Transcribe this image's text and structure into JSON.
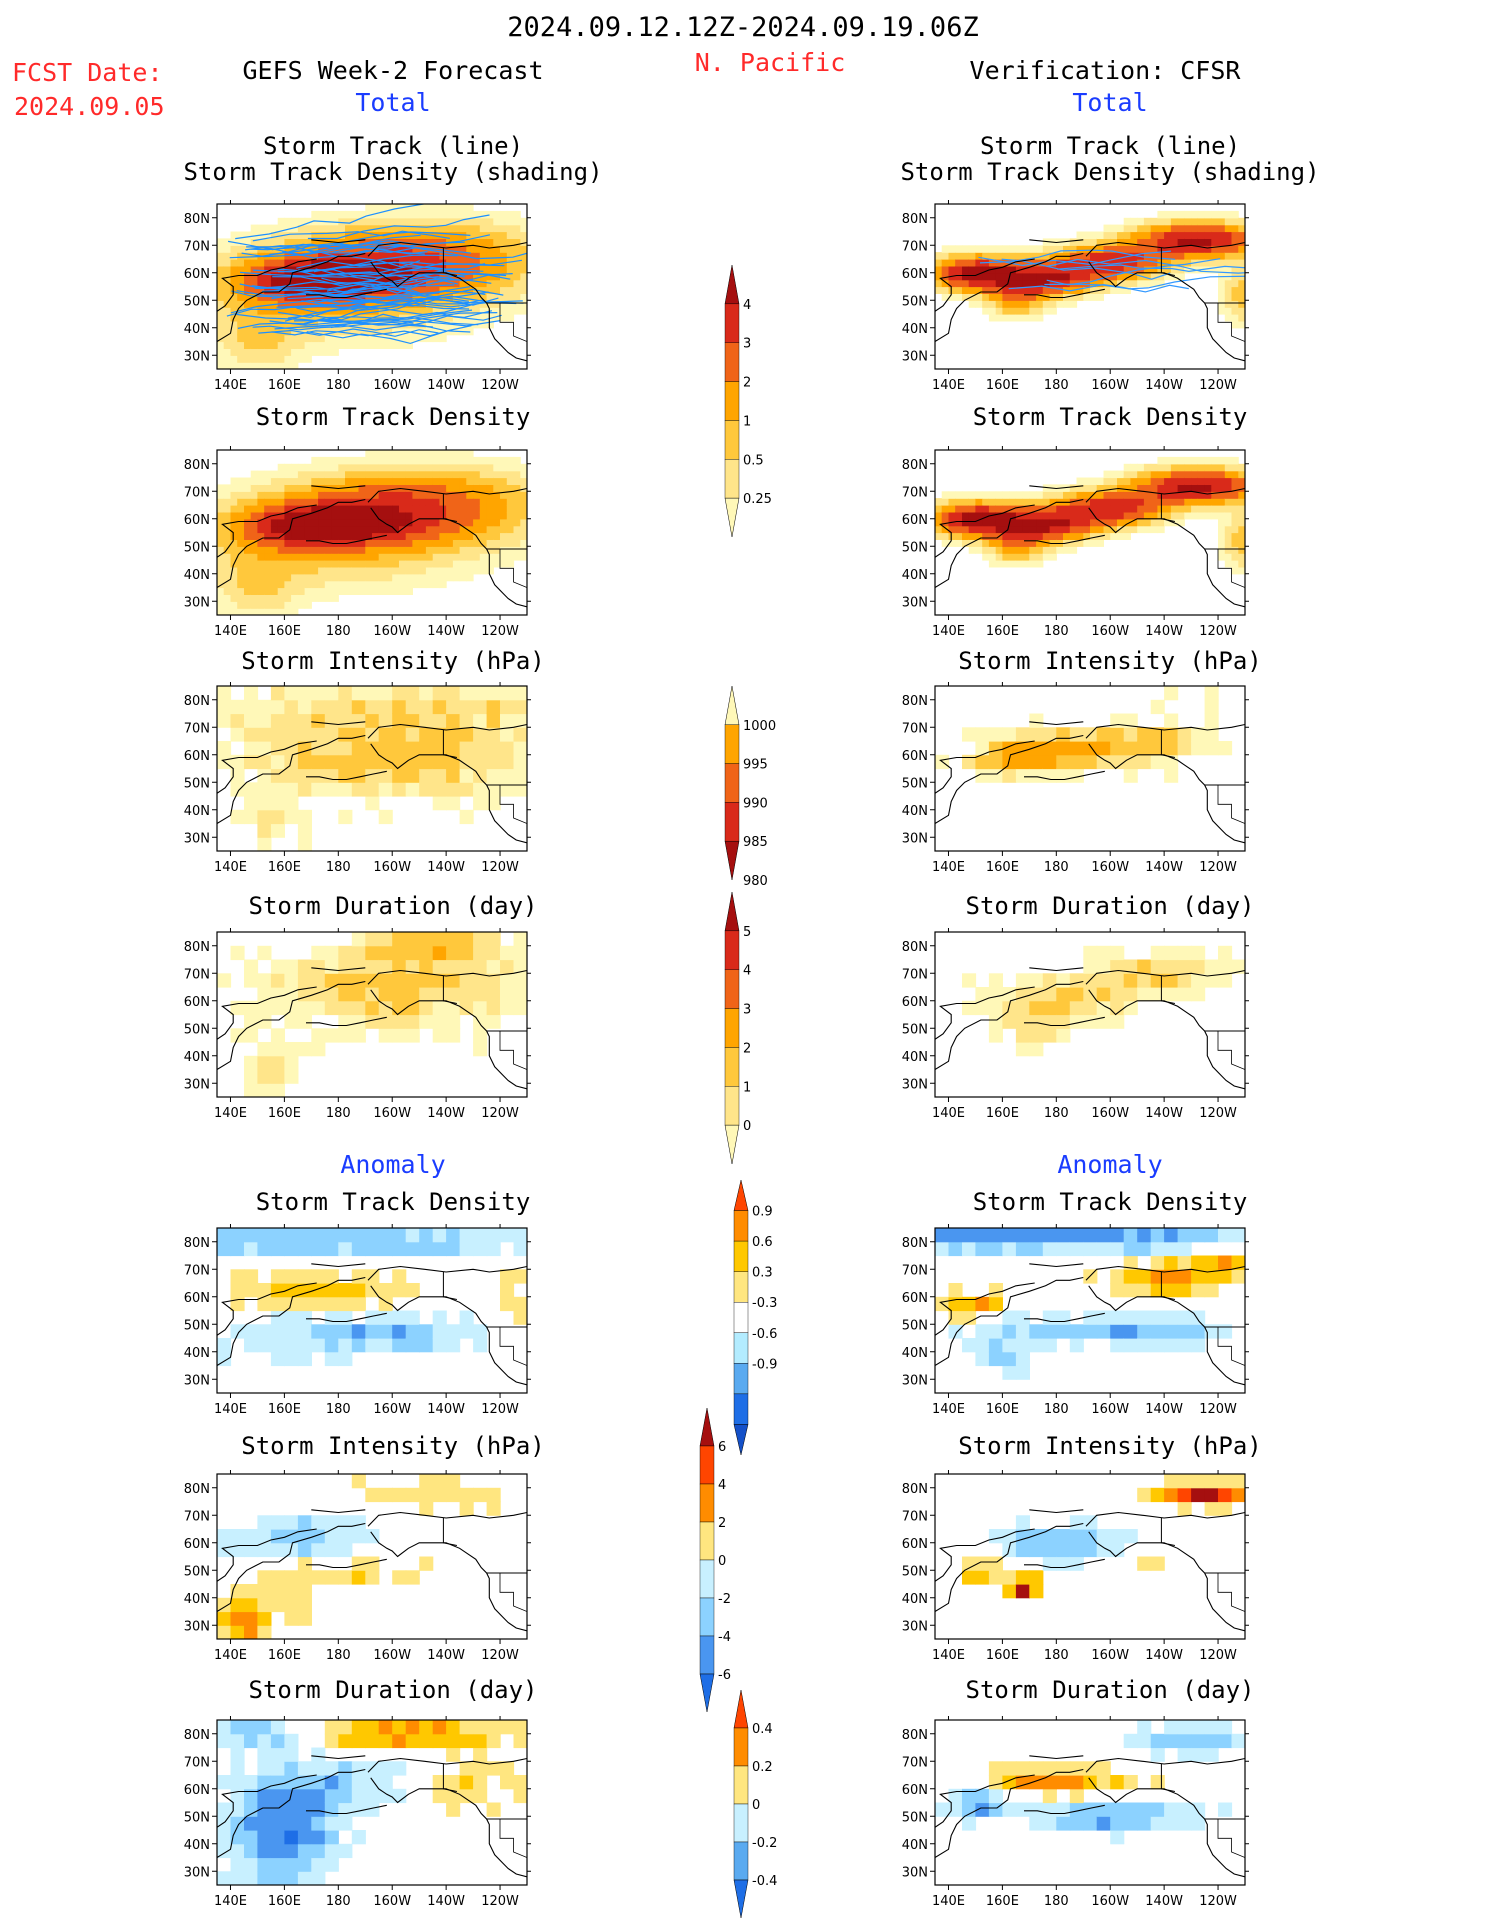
{
  "header": {
    "period": "2024.09.12.12Z-2024.09.19.06Z",
    "region": "N. Pacific",
    "fcst_label": "FCST Date:",
    "fcst_date": "2024.09.05",
    "left_title": "GEFS Week-2 Forecast",
    "right_title": "Verification: CFSR",
    "total_label": "Total",
    "anomaly_label": "Anomaly"
  },
  "axes": {
    "lat_ticks": [
      "80N",
      "70N",
      "60N",
      "50N",
      "40N",
      "30N"
    ],
    "lon_ticks": [
      "140E",
      "160E",
      "180",
      "160W",
      "140W",
      "120W"
    ]
  },
  "panels": {
    "track_line": [
      "Storm Track (line)",
      "Storm Track Density (shading)"
    ],
    "track_density": "Storm Track Density",
    "intensity": "Storm Intensity (hPa)",
    "duration": "Storm Duration (day)"
  },
  "colorbars": {
    "density_total": {
      "labels": [
        "4",
        "3",
        "2",
        "1",
        "0.5",
        "0.25"
      ],
      "colors": [
        "#a50f0f",
        "#d92a1a",
        "#f06418",
        "#ffa500",
        "#ffc83c",
        "#ffe58a",
        "#fff8b8"
      ]
    },
    "intensity_total": {
      "labels": [
        "1000",
        "995",
        "990",
        "985",
        "980"
      ],
      "colors": [
        "#fff8b8",
        "#ffa500",
        "#f06418",
        "#d92a1a",
        "#a50f0f"
      ]
    },
    "duration_total": {
      "labels": [
        "5",
        "4",
        "3",
        "2",
        "1",
        "0"
      ],
      "colors": [
        "#a50f0f",
        "#d92a1a",
        "#f06418",
        "#ffa500",
        "#ffc83c",
        "#ffe58a",
        "#fff8b8"
      ]
    },
    "density_anom": {
      "labels": [
        "0.9",
        "0.6",
        "0.3",
        "-0.3",
        "-0.6",
        "-0.9"
      ],
      "colors": [
        "#ff4500",
        "#ff8c00",
        "#ffc800",
        "#ffe680",
        "#ffffff",
        "#b3ecff",
        "#5aaaf0",
        "#1e6ee6",
        "#1450c8"
      ]
    },
    "intensity_anom": {
      "labels": [
        "6",
        "4",
        "2",
        "0",
        "-2",
        "-4",
        "-6"
      ],
      "colors": [
        "#a50f0f",
        "#ff4500",
        "#ff8c00",
        "#ffe680",
        "#c8f0ff",
        "#8cd2ff",
        "#4a96f0",
        "#1e6ee6"
      ]
    },
    "duration_anom": {
      "labels": [
        "0.4",
        "0.2",
        "0",
        "-0.2",
        "-0.4"
      ],
      "colors": [
        "#ff4500",
        "#ff8c00",
        "#ffe680",
        "#c8f0ff",
        "#5aaaf0",
        "#1e6ee6"
      ]
    }
  }
}
